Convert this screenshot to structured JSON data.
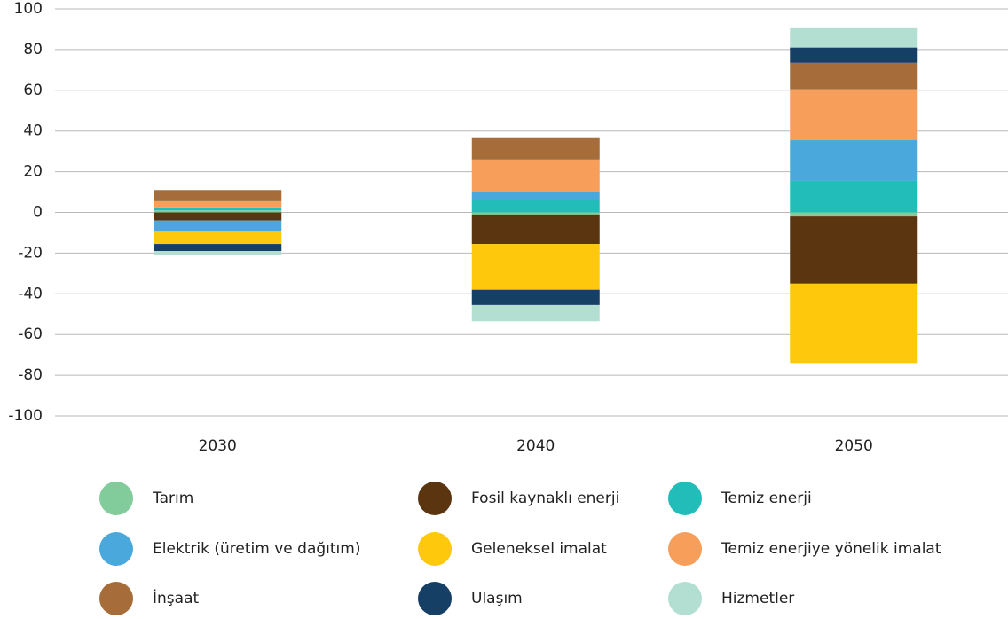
{
  "chart_data": {
    "type": "stacked-bar",
    "categories": [
      "2030",
      "2040",
      "2050"
    ],
    "series": [
      {
        "name": "Tarım",
        "color": "#82cc9c",
        "values": [
          1,
          -1,
          -2
        ]
      },
      {
        "name": "Fosil kaynaklı enerji",
        "color": "#5a3510",
        "values": [
          -4,
          -14.5,
          -33
        ]
      },
      {
        "name": "Temiz enerji",
        "color": "#22bdb9",
        "values": [
          1.5,
          6,
          15.5
        ]
      },
      {
        "name": "Elektrik (üretim ve dağıtım)",
        "color": "#4aa8dc",
        "values": [
          -5.5,
          4,
          20
        ]
      },
      {
        "name": "Geleneksel imalat",
        "color": "#fec80c",
        "values": [
          -6,
          -22.5,
          -39
        ]
      },
      {
        "name": "Temiz enerjiye yönelik imalat",
        "color": "#f79e5a",
        "values": [
          3,
          16,
          25
        ]
      },
      {
        "name": "İnşaat",
        "color": "#a66d3b",
        "values": [
          5.5,
          10.5,
          13
        ]
      },
      {
        "name": "Ulaşım",
        "color": "#163f66",
        "values": [
          -3.5,
          -7.5,
          7.5
        ]
      },
      {
        "name": "Hizmetler",
        "color": "#b3dfd2",
        "values": [
          -2,
          -8,
          9.5
        ]
      }
    ],
    "ylim": [
      -100,
      100
    ],
    "yticks": [
      -100,
      -80,
      -60,
      -40,
      -20,
      0,
      20,
      40,
      60,
      80,
      100
    ],
    "grid": true
  }
}
